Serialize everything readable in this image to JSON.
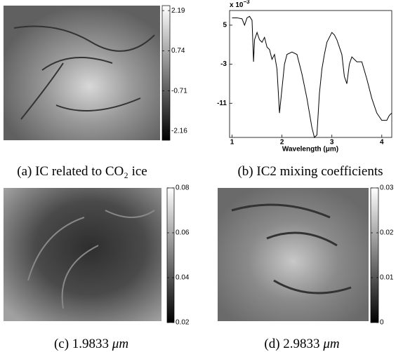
{
  "chart_data": {
    "type": "line",
    "caption": "(b) IC2 mixing coefficients",
    "xlabel": "Wavelength (μm)",
    "multiplier": "x 10",
    "multiplier_exponent": "−3",
    "color": "#000000",
    "x": [
      1.0,
      1.1,
      1.2,
      1.25,
      1.3,
      1.35,
      1.4,
      1.43,
      1.45,
      1.5,
      1.55,
      1.6,
      1.65,
      1.7,
      1.75,
      1.8,
      1.85,
      1.9,
      1.95,
      2.0,
      2.05,
      2.1,
      2.2,
      2.3,
      2.4,
      2.5,
      2.6,
      2.65,
      2.7,
      2.75,
      2.8,
      2.85,
      2.9,
      3.0,
      3.05,
      3.1,
      3.2,
      3.25,
      3.3,
      3.35,
      3.4,
      3.5,
      3.6,
      3.7,
      3.8,
      3.9,
      4.0,
      4.1,
      4.15,
      4.2
    ],
    "values": [
      6.5,
      6.5,
      6.3,
      5.0,
      6.5,
      6.8,
      6.0,
      -2.5,
      2.0,
      3.5,
      2.0,
      1.5,
      2.5,
      0.5,
      0.0,
      -2.0,
      -1.0,
      -4.0,
      -13.0,
      -8.0,
      -3.0,
      -1.0,
      -0.5,
      -1.0,
      -5.0,
      -10.0,
      -16.0,
      -18.0,
      -17.5,
      -9.0,
      -4.0,
      -1.0,
      1.5,
      3.5,
      3.0,
      2.0,
      -1.0,
      -5.5,
      -7.0,
      -3.0,
      -1.5,
      -2.5,
      -2.5,
      -6.0,
      -10.0,
      -13.0,
      -14.5,
      -14.5,
      -13.5,
      -13.0
    ],
    "xlim": [
      0.95,
      4.2
    ],
    "xticks": [
      1,
      2,
      3,
      4
    ],
    "ylim": [
      -18,
      8
    ],
    "yticks": [
      5,
      -3,
      -11
    ]
  },
  "images": [
    {
      "caption": "(a) IC related to CO₂ ice",
      "colorbar_lim": [
        -2.49,
        2.37
      ],
      "colorbar_ticks": [
        2.19,
        0.74,
        -0.71,
        -2.16
      ]
    },
    {
      "caption": "(c) 1.9833",
      "unit": "μm",
      "colorbar_lim": [
        0.02,
        0.08
      ],
      "colorbar_ticks": [
        0.08,
        0.06,
        0.04,
        0.02
      ]
    },
    {
      "caption": "(d) 2.9833",
      "unit": "μm",
      "colorbar_lim": [
        0,
        0.03
      ],
      "colorbar_ticks": [
        0.03,
        0.02,
        0.01,
        0
      ]
    }
  ]
}
